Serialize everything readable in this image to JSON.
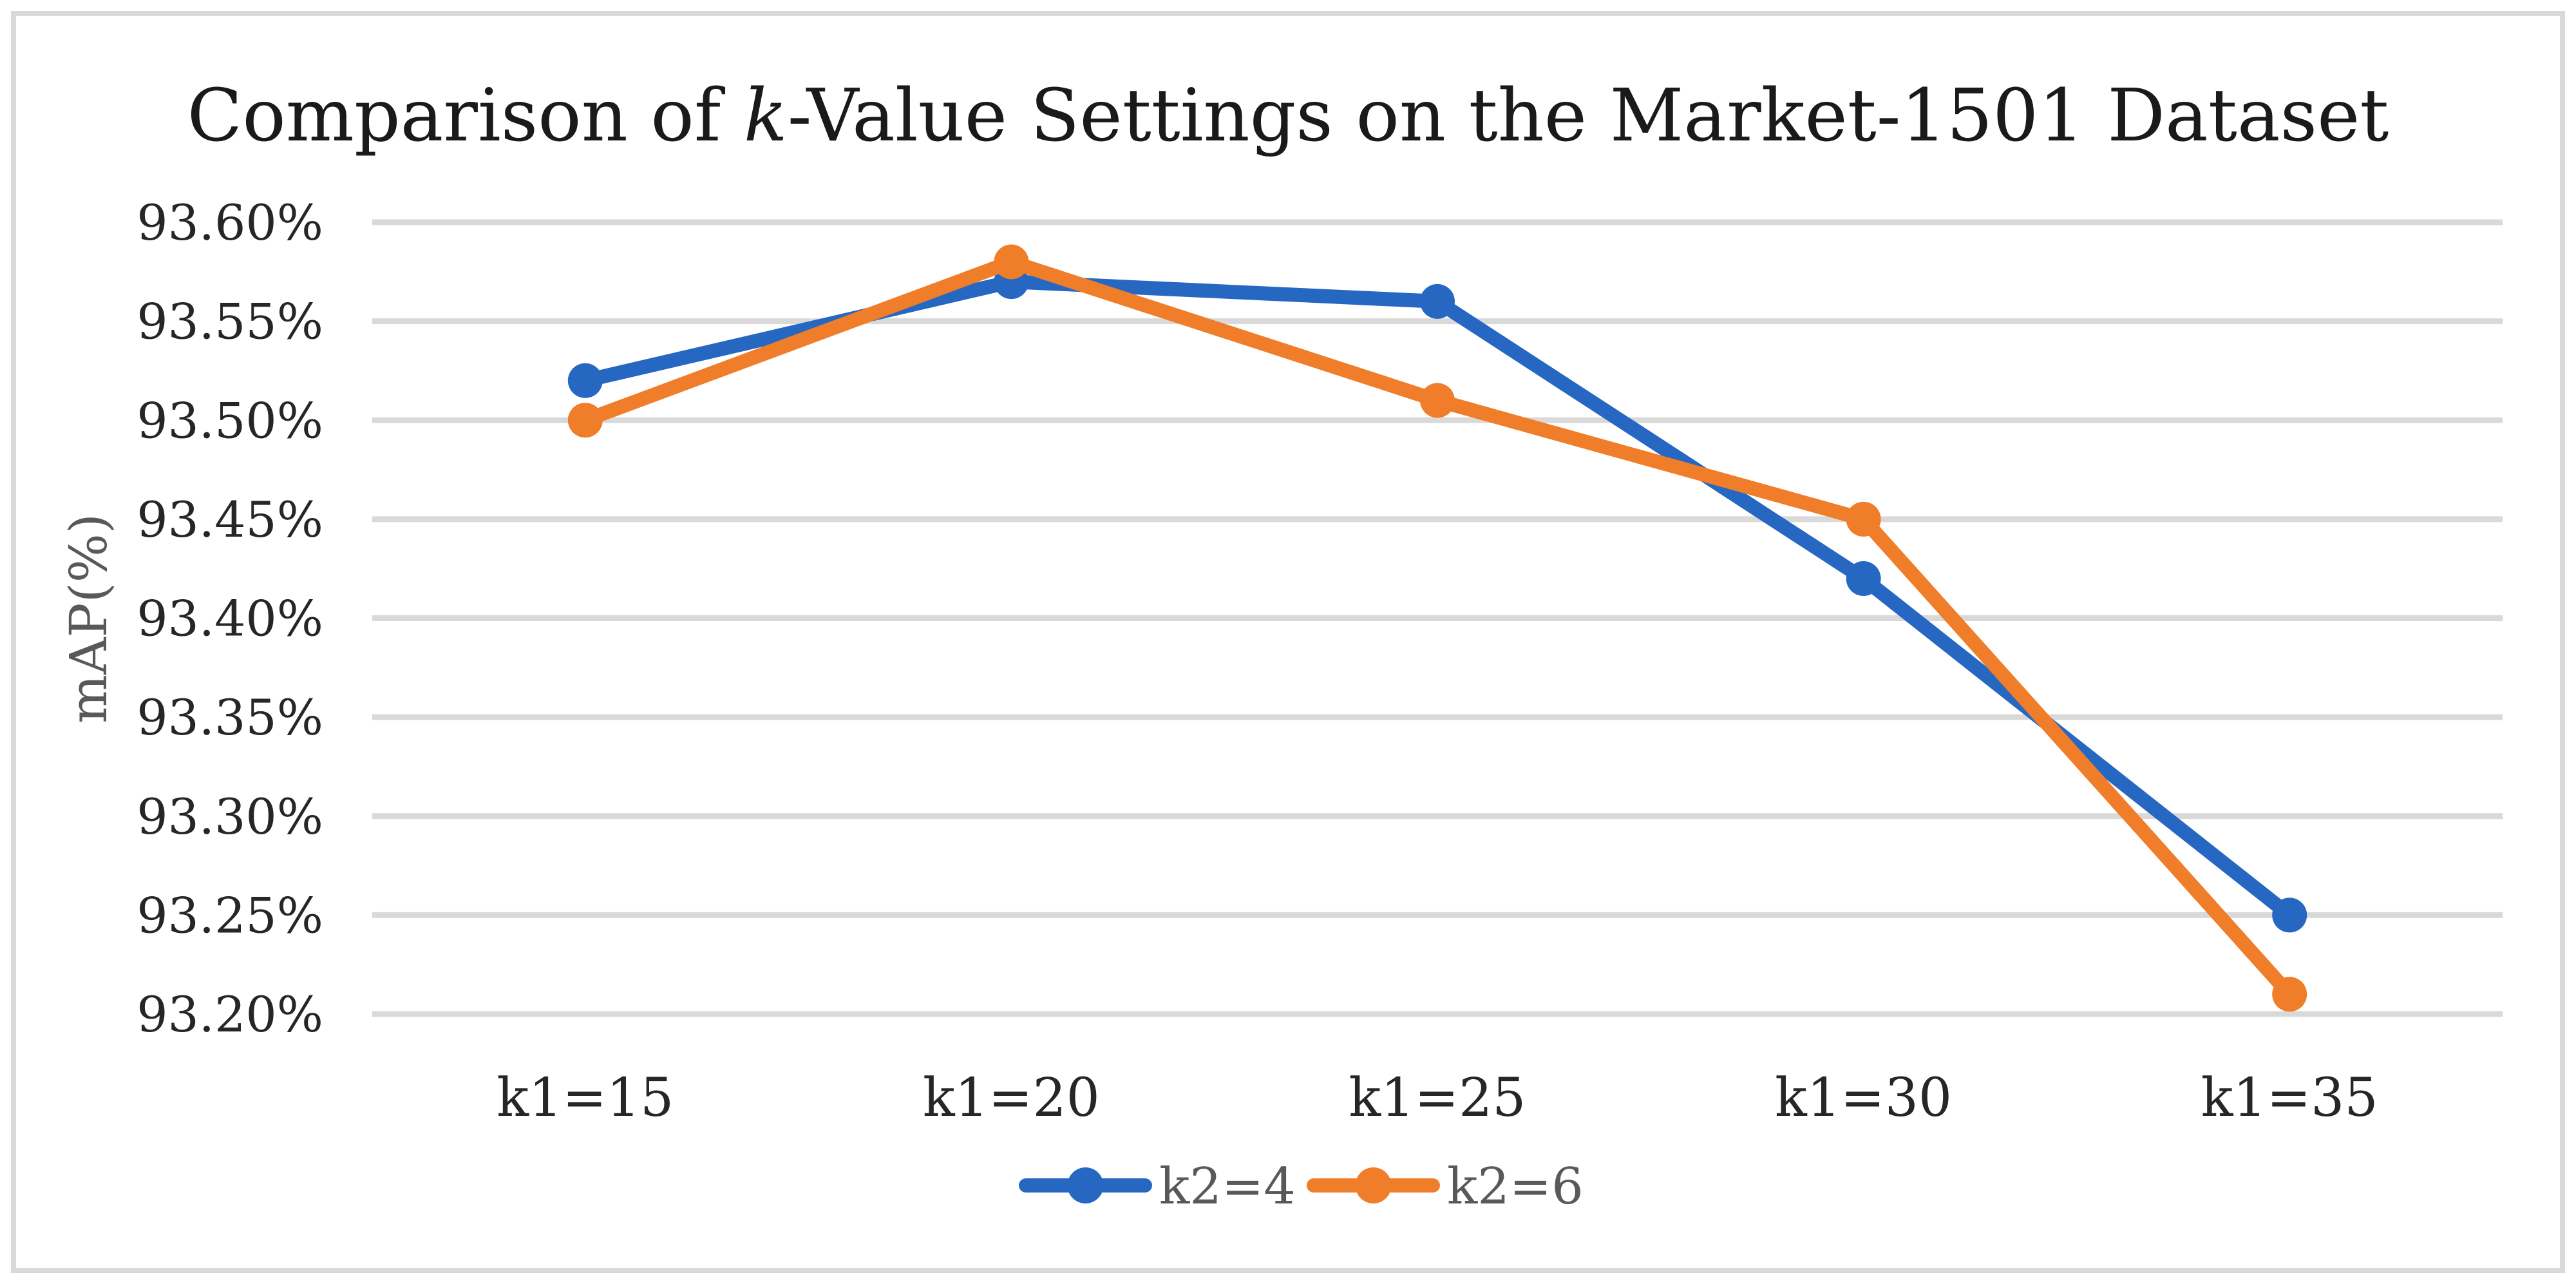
{
  "figure": {
    "title": {
      "prefix": "Comparison of ",
      "italic": "k",
      "suffix": "-Value Settings on the Market-1501 Dataset"
    }
  },
  "chart_data": {
    "type": "line",
    "title": "Comparison of k-Value Settings on the Market-1501 Dataset",
    "categories": [
      "k1=15",
      "k1=20",
      "k1=25",
      "k1=30",
      "k1=35"
    ],
    "series": [
      {
        "name": "k2=4",
        "color": "#2667C2",
        "values": [
          93.52,
          93.57,
          93.56,
          93.42,
          93.25
        ]
      },
      {
        "name": "k2=6",
        "color": "#F07D29",
        "values": [
          93.5,
          93.58,
          93.51,
          93.45,
          93.21
        ]
      }
    ],
    "xlabel": "",
    "ylabel": "mAP(%)",
    "ylim": [
      93.2,
      93.6
    ],
    "ytick_step": 0.05,
    "yticks": [
      "93.60%",
      "93.55%",
      "93.50%",
      "93.45%",
      "93.40%",
      "93.35%",
      "93.30%",
      "93.25%",
      "93.20%"
    ],
    "grid": true,
    "legend_position": "bottom-center",
    "marker": "circle",
    "colors": {
      "gridline": "#D9D9D9",
      "frame_border": "#D9D9D9",
      "tick_text": "#262626",
      "title_text": "#1A1A1A",
      "axis_title_text": "#595959",
      "legend_text": "#595959"
    }
  }
}
